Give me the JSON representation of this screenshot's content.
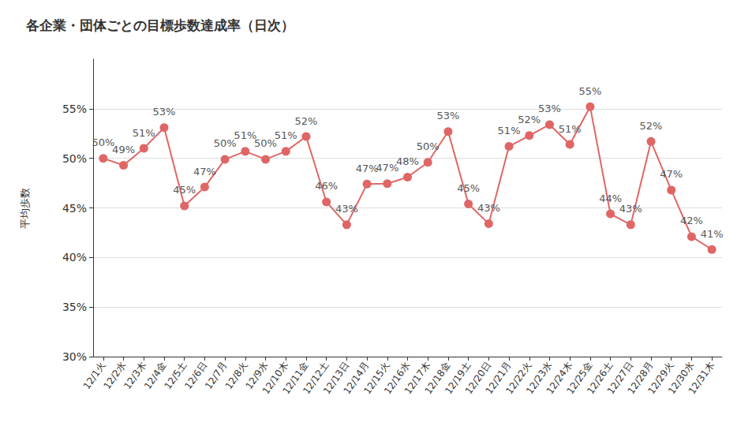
{
  "chart_data": {
    "type": "line",
    "title": "各企業・団体ごとの目標歩数達成率（日次）",
    "y_label": "平均歩数",
    "categories": [
      "12/1火",
      "12/2水",
      "12/3木",
      "12/4金",
      "12/5土",
      "12/6日",
      "12/7月",
      "12/8火",
      "12/9水",
      "12/10木",
      "12/11金",
      "12/12土",
      "12/13日",
      "12/14月",
      "12/15火",
      "12/16水",
      "12/17木",
      "12/18金",
      "12/19土",
      "12/20日",
      "12/21月",
      "12/22火",
      "12/23水",
      "12/24木",
      "12/25金",
      "12/26土",
      "12/27日",
      "12/28月",
      "12/29火",
      "12/30水",
      "12/31木"
    ],
    "values": [
      50.0,
      49.3,
      51.0,
      53.1,
      45.2,
      47.1,
      49.9,
      50.7,
      49.9,
      50.7,
      52.2,
      45.6,
      43.3,
      47.4,
      47.45,
      48.1,
      49.6,
      52.7,
      45.4,
      43.4,
      51.2,
      52.3,
      53.4,
      51.4,
      55.2,
      44.4,
      43.3,
      51.7,
      46.8,
      42.1,
      40.8
    ],
    "value_labels": [
      "50%",
      "49%",
      "51%",
      "53%",
      "45%",
      "47%",
      "50%",
      "51%",
      "50%",
      "51%",
      "52%",
      "46%",
      "43%",
      "47%",
      "47%",
      "48%",
      "50%",
      "53%",
      "45%",
      "43%",
      "51%",
      "52%",
      "53%",
      "51%",
      "55%",
      "44%",
      "43%",
      "52%",
      "47%",
      "42%",
      "41%"
    ],
    "color": "#e06666",
    "marker": "circle",
    "data_labels": true,
    "grid": true,
    "ylim": [
      30,
      60
    ],
    "yticks": [
      {
        "value": 30,
        "label": "30%"
      },
      {
        "value": 35,
        "label": "35%"
      },
      {
        "value": 40,
        "label": "40%"
      },
      {
        "value": 45,
        "label": "45%"
      },
      {
        "value": 50,
        "label": "50%"
      },
      {
        "value": 55,
        "label": "55%"
      }
    ]
  }
}
